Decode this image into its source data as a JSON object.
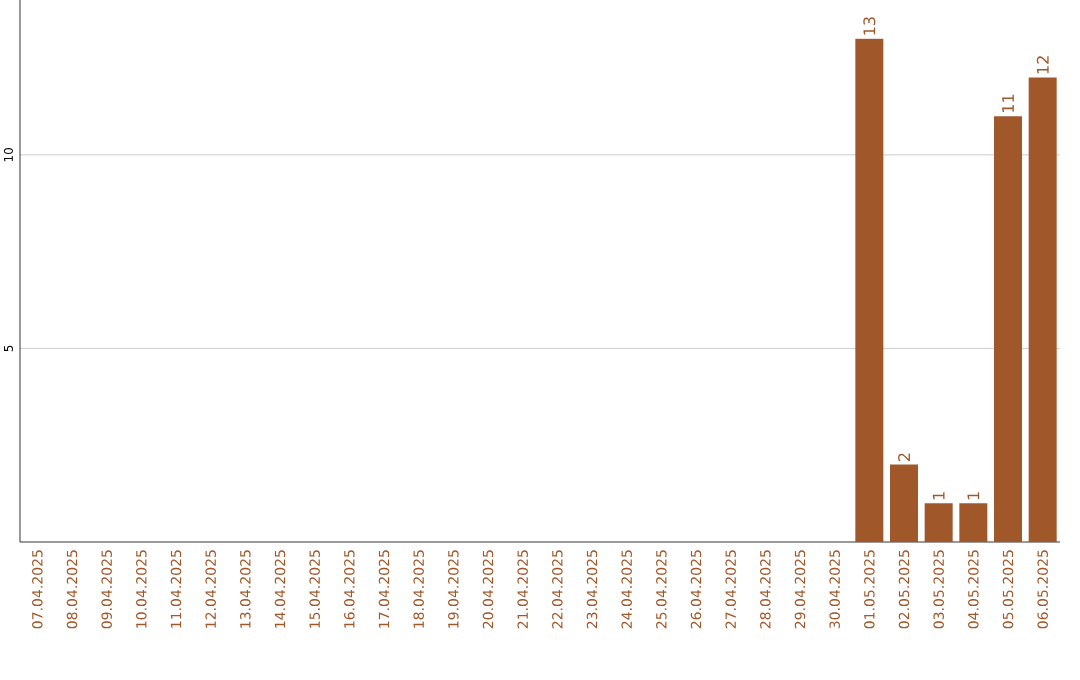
{
  "chart_data": {
    "type": "bar",
    "categories": [
      "07.04.2025",
      "08.04.2025",
      "09.04.2025",
      "10.04.2025",
      "11.04.2025",
      "12.04.2025",
      "13.04.2025",
      "14.04.2025",
      "15.04.2025",
      "16.04.2025",
      "17.04.2025",
      "18.04.2025",
      "19.04.2025",
      "20.04.2025",
      "21.04.2025",
      "22.04.2025",
      "23.04.2025",
      "24.04.2025",
      "25.04.2025",
      "26.04.2025",
      "27.04.2025",
      "28.04.2025",
      "29.04.2025",
      "30.04.2025",
      "01.05.2025",
      "02.05.2025",
      "03.05.2025",
      "04.05.2025",
      "05.05.2025",
      "06.05.2025"
    ],
    "values": [
      0,
      0,
      0,
      0,
      0,
      0,
      0,
      0,
      0,
      0,
      0,
      0,
      0,
      0,
      0,
      0,
      0,
      0,
      0,
      0,
      0,
      0,
      0,
      0,
      13,
      2,
      1,
      1,
      11,
      12
    ],
    "value_labels": [
      null,
      null,
      null,
      null,
      null,
      null,
      null,
      null,
      null,
      null,
      null,
      null,
      null,
      null,
      null,
      null,
      null,
      null,
      null,
      null,
      null,
      null,
      null,
      null,
      "13",
      "2",
      "1",
      "1",
      "11",
      "12"
    ],
    "color": "#a0572a",
    "ylim": [
      0,
      14
    ],
    "yticks": [
      5,
      10
    ],
    "grid": "y"
  }
}
